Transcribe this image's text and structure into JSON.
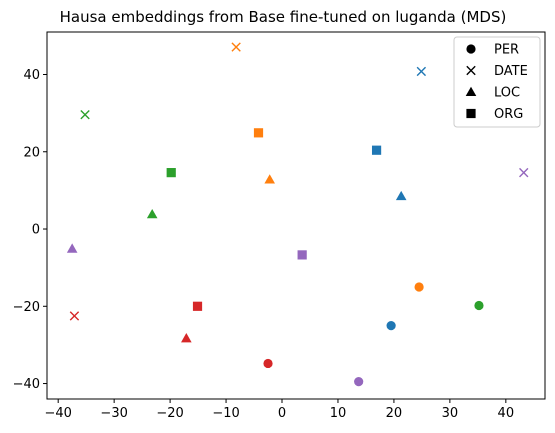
{
  "chart_data": {
    "type": "scatter",
    "title": "Hausa embeddings from Base fine-tuned on luganda (MDS)",
    "xlabel": "",
    "ylabel": "",
    "xlim": [
      -42,
      47
    ],
    "ylim": [
      -44,
      51
    ],
    "xticks": [
      -40,
      -30,
      -20,
      -10,
      0,
      10,
      20,
      30,
      40
    ],
    "yticks": [
      -40,
      -20,
      0,
      20,
      40
    ],
    "grid": false,
    "legend": {
      "placement": "top-right",
      "entries": [
        {
          "label": "PER",
          "marker": "circle"
        },
        {
          "label": "DATE",
          "marker": "x"
        },
        {
          "label": "LOC",
          "marker": "triangle"
        },
        {
          "label": "ORG",
          "marker": "square"
        }
      ]
    },
    "colors": {
      "blue": "#1f77b4",
      "orange": "#ff7f0e",
      "green": "#2ca02c",
      "red": "#d62728",
      "purple": "#9467bd"
    },
    "points": [
      {
        "x": 24.9,
        "y": 40.8,
        "marker": "x",
        "color": "blue"
      },
      {
        "x": -8.2,
        "y": 47.1,
        "marker": "x",
        "color": "orange"
      },
      {
        "x": -35.2,
        "y": 29.6,
        "marker": "x",
        "color": "green"
      },
      {
        "x": 43.2,
        "y": 14.6,
        "marker": "x",
        "color": "purple"
      },
      {
        "x": -37.1,
        "y": -22.5,
        "marker": "x",
        "color": "red"
      },
      {
        "x": 19.5,
        "y": -25.0,
        "marker": "circle",
        "color": "blue"
      },
      {
        "x": 24.5,
        "y": -15.0,
        "marker": "circle",
        "color": "orange"
      },
      {
        "x": 35.2,
        "y": -19.8,
        "marker": "circle",
        "color": "green"
      },
      {
        "x": -2.5,
        "y": -34.8,
        "marker": "circle",
        "color": "red"
      },
      {
        "x": 13.7,
        "y": -39.5,
        "marker": "circle",
        "color": "purple"
      },
      {
        "x": 21.3,
        "y": 8.5,
        "marker": "triangle",
        "color": "blue"
      },
      {
        "x": -2.2,
        "y": 12.8,
        "marker": "triangle",
        "color": "orange"
      },
      {
        "x": -23.2,
        "y": 3.8,
        "marker": "triangle",
        "color": "green"
      },
      {
        "x": -17.1,
        "y": -28.3,
        "marker": "triangle",
        "color": "red"
      },
      {
        "x": -37.5,
        "y": -5.1,
        "marker": "triangle",
        "color": "purple"
      },
      {
        "x": 16.9,
        "y": 20.4,
        "marker": "square",
        "color": "blue"
      },
      {
        "x": -4.2,
        "y": 24.9,
        "marker": "square",
        "color": "orange"
      },
      {
        "x": -19.8,
        "y": 14.6,
        "marker": "square",
        "color": "green"
      },
      {
        "x": -15.1,
        "y": -20.0,
        "marker": "square",
        "color": "red"
      },
      {
        "x": 3.6,
        "y": -6.7,
        "marker": "square",
        "color": "purple"
      }
    ]
  }
}
